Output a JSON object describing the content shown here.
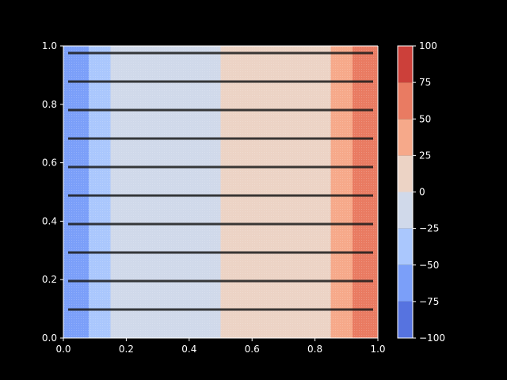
{
  "chart_data": {
    "type": "heatmap",
    "subtype": "filled-contour",
    "colormap": "coolwarm",
    "background": "#000000",
    "x": [
      0.0,
      0.08,
      0.15,
      0.5,
      0.85,
      0.92,
      1.0
    ],
    "z_profile": [
      -85,
      -50,
      -15,
      0,
      15,
      50,
      85
    ],
    "xlim": [
      0,
      1
    ],
    "ylim": [
      0,
      1
    ],
    "xticks": [
      "0.0",
      "0.2",
      "0.4",
      "0.6",
      "0.8",
      "1.0"
    ],
    "yticks": [
      "0.0",
      "0.2",
      "0.4",
      "0.6",
      "0.8",
      "1.0"
    ],
    "dark_bands_y": [
      0.0976,
      0.1951,
      0.2927,
      0.3902,
      0.4878,
      0.5854,
      0.6829,
      0.7805,
      0.878,
      0.9756
    ],
    "grid": false,
    "colorbar": {
      "levels": [
        -100,
        -75,
        -50,
        -25,
        0,
        25,
        50,
        75,
        100
      ],
      "tick_labels": [
        "−100",
        "−75",
        "−50",
        "−25",
        "0",
        "25",
        "50",
        "75",
        "100"
      ],
      "colors": [
        "#5673e0",
        "#7b9ff9",
        "#aac7fd",
        "#d0d9ea",
        "#ecd3c5",
        "#f6a98a",
        "#e97b62",
        "#cc403a"
      ]
    }
  }
}
